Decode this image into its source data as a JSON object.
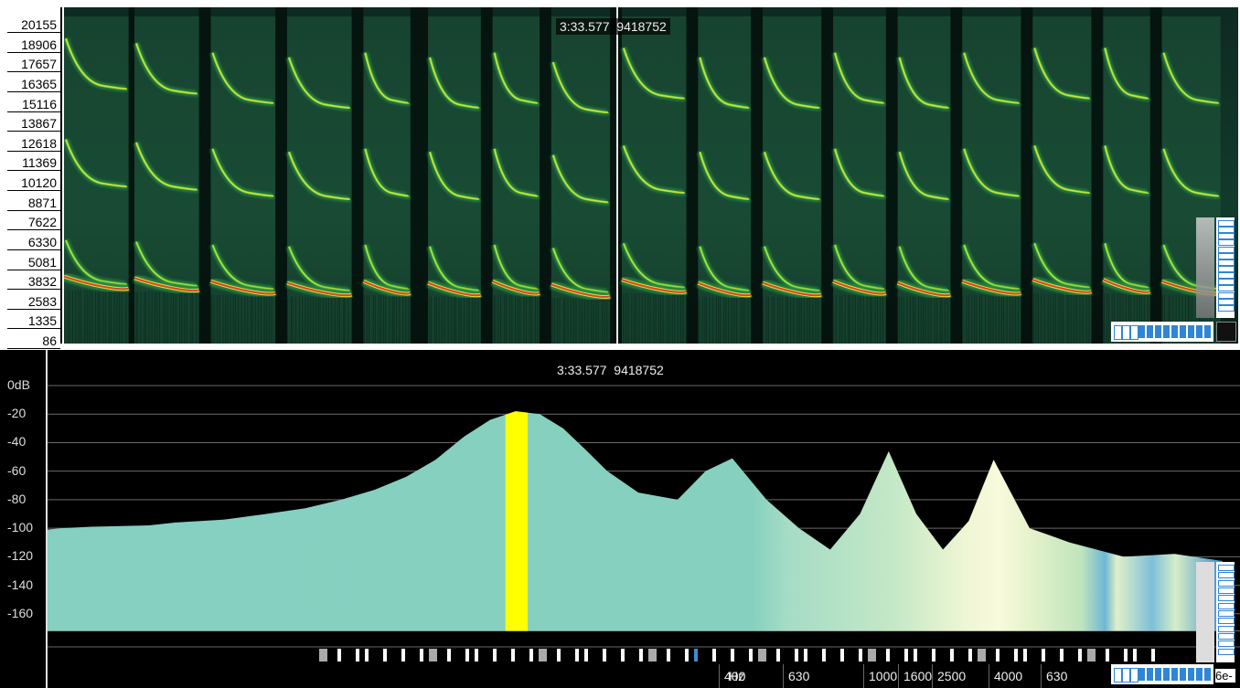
{
  "chart_data": [
    {
      "type": "heatmap",
      "panel": "spectrogram",
      "y_tick_labels": [
        "20155",
        "18906",
        "17657",
        "16365",
        "15116",
        "13867",
        "12618",
        "11369",
        "10120",
        "8871",
        "7622",
        "6330",
        "5081",
        "3832",
        "2583",
        "1335",
        "86"
      ],
      "ylim": [
        86,
        20155
      ],
      "readout": {
        "time": "3:33.577",
        "sample": "9418752"
      },
      "colors": {
        "background": "#000000",
        "low": "#1b4a3c",
        "mid": "#33a64a",
        "high": "#d8e23a",
        "peak": "#e0402a"
      },
      "calls": [
        {
          "start": 0.0,
          "end": 0.055,
          "fundamental": 3700
        },
        {
          "start": 0.06,
          "end": 0.115,
          "fundamental": 3600
        },
        {
          "start": 0.125,
          "end": 0.18,
          "fundamental": 3400
        },
        {
          "start": 0.19,
          "end": 0.245,
          "fundamental": 3300
        },
        {
          "start": 0.255,
          "end": 0.295,
          "fundamental": 3400
        },
        {
          "start": 0.31,
          "end": 0.355,
          "fundamental": 3300
        },
        {
          "start": 0.365,
          "end": 0.405,
          "fundamental": 3400
        },
        {
          "start": 0.415,
          "end": 0.465,
          "fundamental": 3200
        },
        {
          "start": 0.475,
          "end": 0.53,
          "fundamental": 3500
        },
        {
          "start": 0.54,
          "end": 0.585,
          "fundamental": 3300
        },
        {
          "start": 0.595,
          "end": 0.645,
          "fundamental": 3300
        },
        {
          "start": 0.655,
          "end": 0.7,
          "fundamental": 3400
        },
        {
          "start": 0.71,
          "end": 0.755,
          "fundamental": 3300
        },
        {
          "start": 0.765,
          "end": 0.815,
          "fundamental": 3400
        },
        {
          "start": 0.825,
          "end": 0.875,
          "fundamental": 3500
        },
        {
          "start": 0.885,
          "end": 0.925,
          "fundamental": 3500
        },
        {
          "start": 0.935,
          "end": 0.985,
          "fundamental": 3400
        }
      ]
    },
    {
      "type": "area",
      "panel": "spectrum",
      "y_tick_labels": [
        "0dB",
        "-20",
        "-40",
        "-60",
        "-80",
        "-100",
        "-120",
        "-140",
        "-160"
      ],
      "ylim": [
        -172,
        6
      ],
      "xlabel": "Hz",
      "x_tick_labels": [
        "400",
        "630",
        "1000",
        "1600",
        "2500",
        "4000",
        "630"
      ],
      "x_scale": "log",
      "readout": {
        "time": "3:33.577",
        "sample": "9418752"
      },
      "series": [
        {
          "x": [
            20,
            100,
            200,
            300,
            400,
            500,
            700,
            900,
            1100,
            1300,
            1500,
            1700,
            1900,
            2100,
            2300,
            2500,
            2700,
            2900,
            3100,
            3300,
            3600,
            4000,
            4300,
            4600,
            5000,
            5400,
            5800,
            6200,
            6600,
            7000,
            7400,
            7800,
            8200,
            8800,
            9500,
            10500,
            11500,
            12500
          ],
          "y": [
            -101,
            -100,
            -99,
            -98.5,
            -98,
            -96,
            -94,
            -90,
            -86,
            -80,
            -73,
            -64,
            -52,
            -36,
            -24,
            -18,
            -20,
            -30,
            -45,
            -60,
            -75,
            -80,
            -60,
            -51,
            -80,
            -100,
            -115,
            -90,
            -46,
            -90,
            -115,
            -95,
            -52,
            -100,
            -110,
            -120,
            -118,
            -123
          ]
        }
      ],
      "colors": {
        "fill_low": "#85d0c0",
        "fill_mid": "#b8e2bf",
        "fill_high": "#f4f7d4",
        "peak_band": "#ffff00",
        "edge": "#3a8ed0"
      }
    }
  ]
}
